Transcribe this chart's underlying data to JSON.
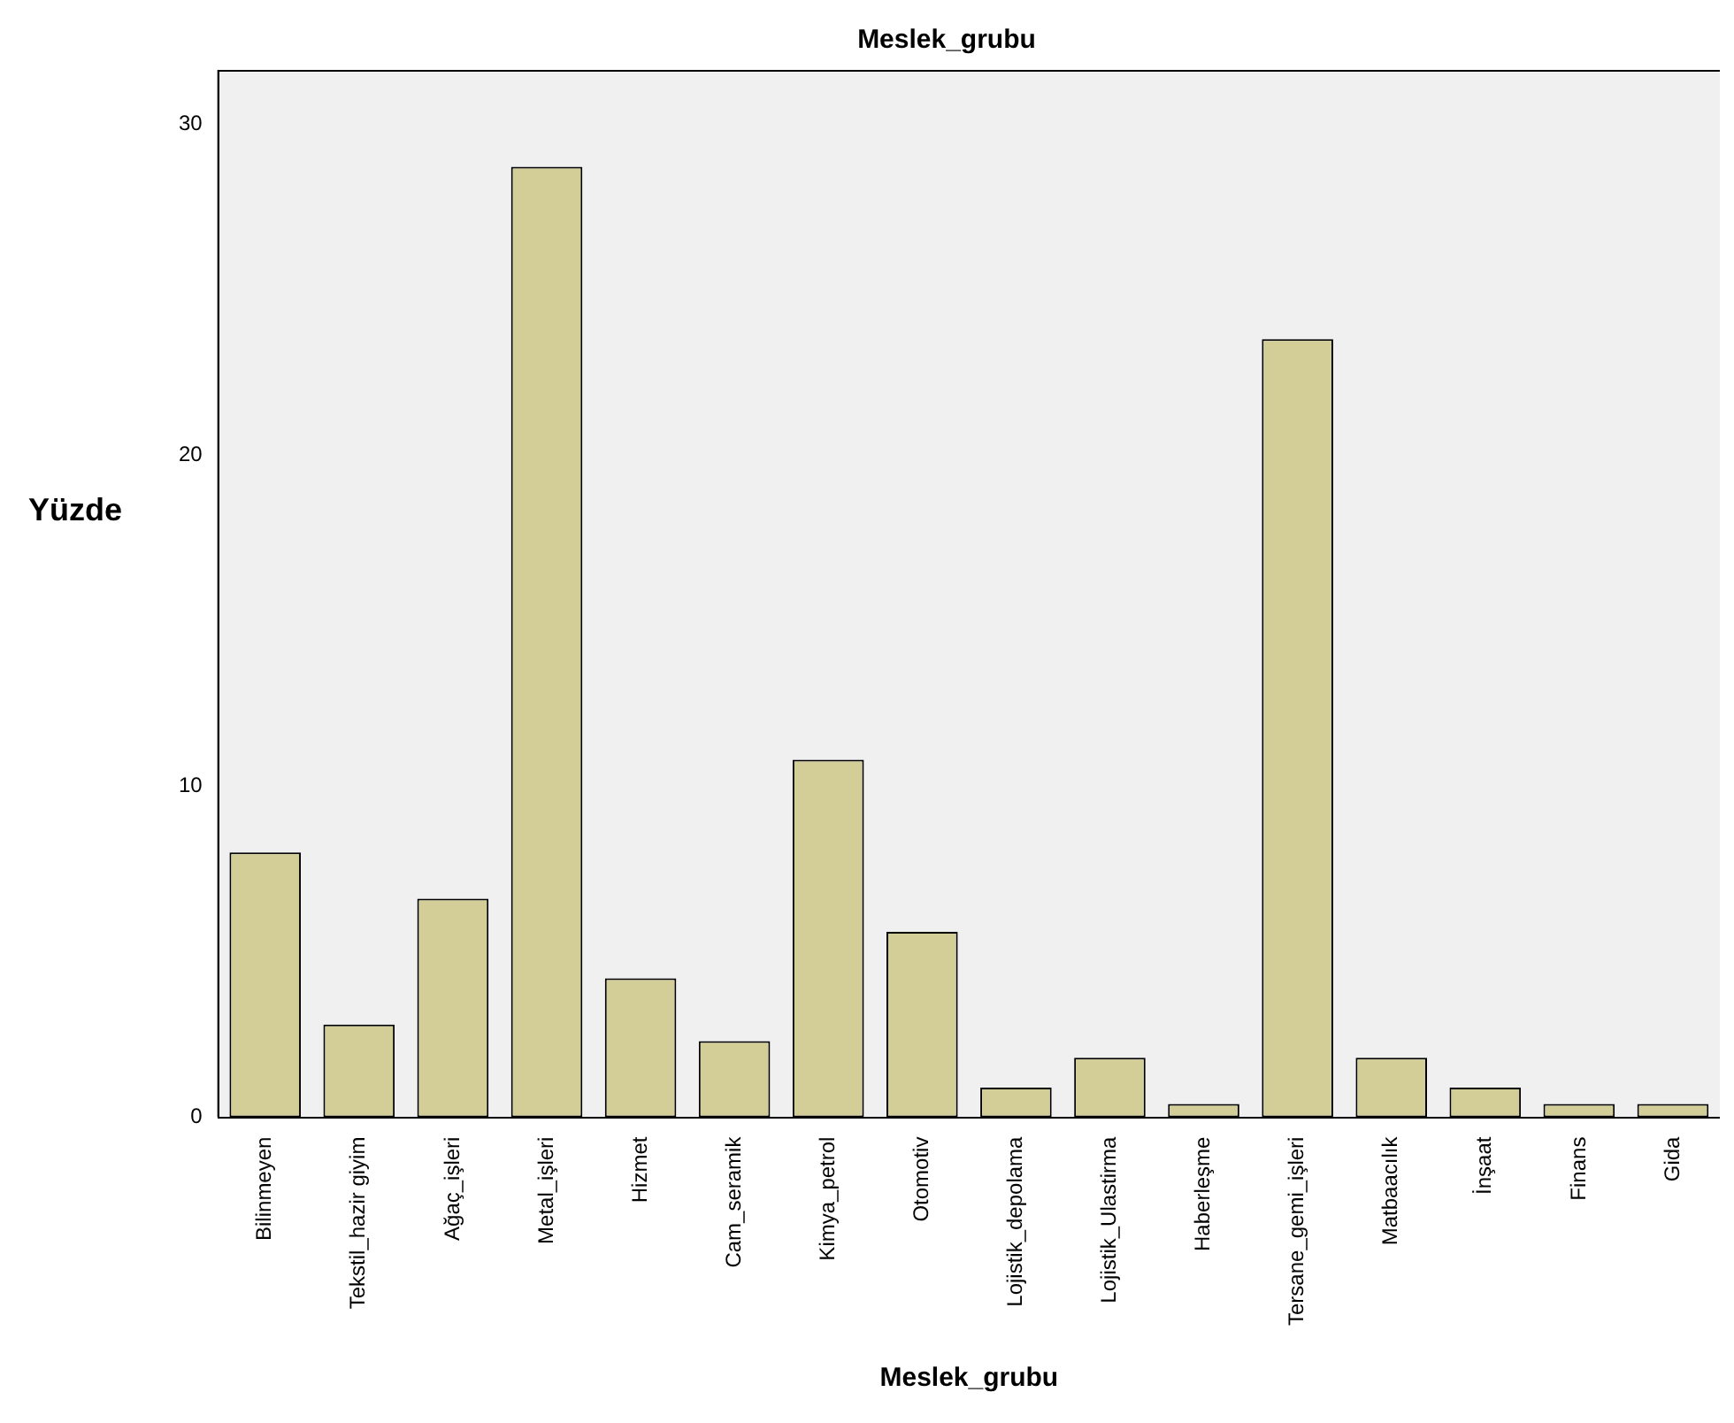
{
  "chart_data": {
    "type": "bar",
    "title": "Meslek_grubu",
    "xlabel": "Meslek_grubu",
    "ylabel": "Yüzde",
    "categories": [
      "Bilinmeyen",
      "Tekstil_hazir giyim",
      "Ağaç_işleri",
      "Metal_işleri",
      "Hizmet",
      "Cam_seramik",
      "Kimya_petrol",
      "Otomotiv",
      "Lojistik_depolama",
      "Lojistik_Ulastirma",
      "Haberleşme",
      "Tersane_gemi_işleri",
      "Matbaacılık",
      "İnşaat",
      "Finans",
      "Gida"
    ],
    "values": [
      8.0,
      2.8,
      6.6,
      28.7,
      4.2,
      2.3,
      10.8,
      5.6,
      0.9,
      1.8,
      0.4,
      23.5,
      1.8,
      0.9,
      0.4,
      0.4
    ],
    "color": "#d3ce97",
    "ylim": [
      0,
      31.6
    ],
    "yticks": [
      0,
      10,
      20,
      30
    ],
    "grid": false,
    "legend": false
  }
}
